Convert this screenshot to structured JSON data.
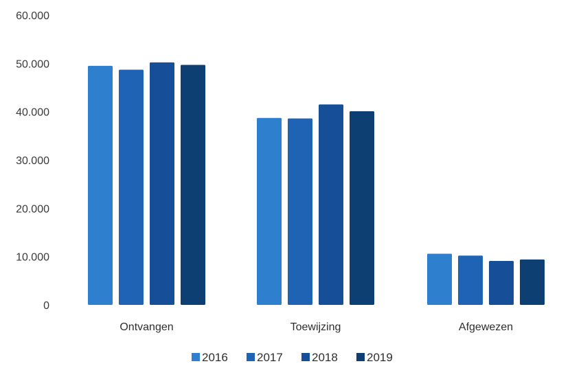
{
  "chart_data": {
    "type": "bar",
    "title": "",
    "xlabel": "",
    "ylabel": "",
    "categories": [
      "Ontvangen",
      "Toewijzing",
      "Afgewezen"
    ],
    "series": [
      {
        "name": "2016",
        "color": "#2f7fcf",
        "values": [
          49500,
          38700,
          10600
        ]
      },
      {
        "name": "2017",
        "color": "#1f63b5",
        "values": [
          48700,
          38600,
          10200
        ]
      },
      {
        "name": "2018",
        "color": "#164e97",
        "values": [
          50200,
          41500,
          9100
        ]
      },
      {
        "name": "2019",
        "color": "#0d3f72",
        "values": [
          49700,
          40100,
          9400
        ]
      }
    ],
    "ylim": [
      0,
      60000
    ],
    "yticks": [
      0,
      10000,
      20000,
      30000,
      40000,
      50000,
      60000
    ],
    "ytick_labels": [
      "0",
      "10.000",
      "20.000",
      "30.000",
      "40.000",
      "50.000",
      "60.000"
    ],
    "grid": false,
    "legend_position": "bottom"
  }
}
